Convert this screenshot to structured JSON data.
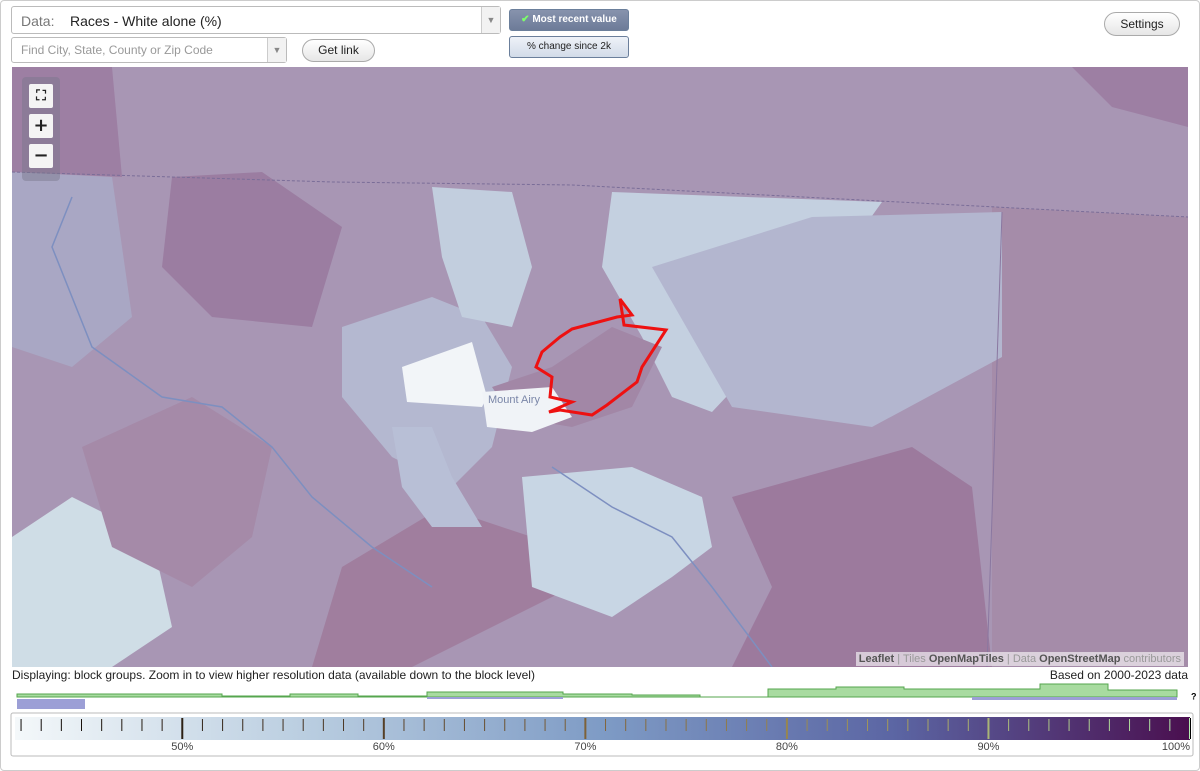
{
  "data_selector": {
    "label": "Data:",
    "value": "Races - White alone (%)"
  },
  "search": {
    "placeholder": "Find City, State, County or Zip Code"
  },
  "buttons": {
    "get_link": "Get link",
    "most_recent": "Most recent value",
    "percent_change": "% change since 2k",
    "settings": "Settings"
  },
  "map": {
    "place_label": "Mount Airy",
    "attribution": {
      "leaflet": "Leaflet",
      "separator": "|",
      "tiles_label": "Tiles",
      "tiles": "OpenMapTiles",
      "data_label": "Data",
      "data": "OpenStreetMap",
      "contributors": "contributors"
    }
  },
  "footer": {
    "displaying": "Displaying: block groups. Zoom in to view higher resolution data (available down to the block level)",
    "based_on": "Based on 2000-2023 data",
    "help": "?"
  },
  "legend": {
    "range": [
      41.7,
      100
    ],
    "minor_step": 1,
    "colors": [
      "#f4f8fa",
      "#b9cde0",
      "#7e9bc5",
      "#5b65a3",
      "#4a0f4f"
    ],
    "ticks": [
      {
        "value": 50,
        "label": "50%"
      },
      {
        "value": 60,
        "label": "60%"
      },
      {
        "value": 70,
        "label": "70%"
      },
      {
        "value": 80,
        "label": "80%"
      },
      {
        "value": 90,
        "label": "90%"
      },
      {
        "value": 100,
        "label": "100%"
      }
    ]
  }
}
